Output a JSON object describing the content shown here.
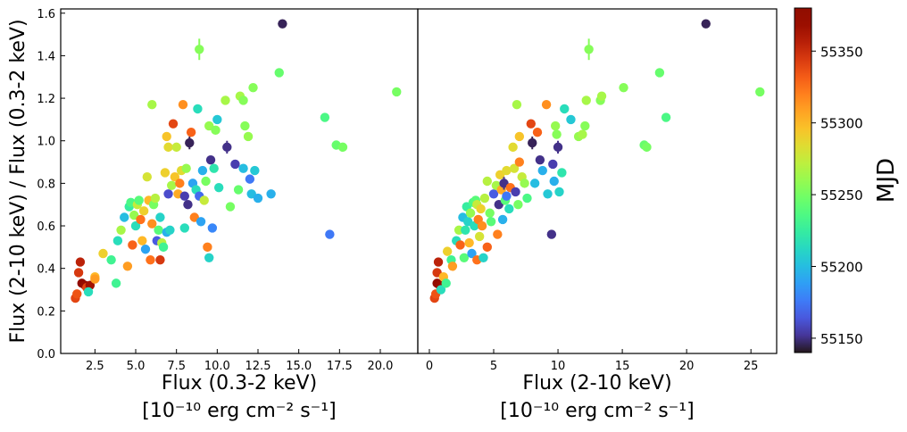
{
  "chart_data": [
    {
      "type": "scatter",
      "xlabel": "Flux (0.3-2 keV)",
      "xunit": "[10⁻¹⁰ erg cm⁻² s⁻¹]",
      "ylabel": "Flux (2-10 keV) / Flux (0.3-2 keV)",
      "xlim": [
        0.4,
        22.3
      ],
      "ylim": [
        0.0,
        1.62
      ],
      "xticks": [
        "2.5",
        "5.0",
        "7.5",
        "10.0",
        "12.5",
        "15.0",
        "17.5",
        "20.0"
      ],
      "yticks": [
        "0.0",
        "0.2",
        "0.4",
        "0.6",
        "0.8",
        "1.0",
        "1.2",
        "1.4",
        "1.6"
      ],
      "grid": false,
      "color_by": "MJD",
      "points": [
        {
          "x": 1.3,
          "y": 0.26,
          "c": 55340
        },
        {
          "x": 1.4,
          "y": 0.28,
          "c": 55335
        },
        {
          "x": 1.5,
          "y": 0.38,
          "c": 55345
        },
        {
          "x": 1.6,
          "y": 0.43,
          "c": 55355
        },
        {
          "x": 1.7,
          "y": 0.33,
          "c": 55375
        },
        {
          "x": 1.9,
          "y": 0.32,
          "c": 55370
        },
        {
          "x": 2.0,
          "y": 0.31,
          "c": 55340
        },
        {
          "x": 2.2,
          "y": 0.32,
          "c": 55365
        },
        {
          "x": 2.1,
          "y": 0.29,
          "c": 55215
        },
        {
          "x": 2.5,
          "y": 0.36,
          "c": 55300
        },
        {
          "x": 2.5,
          "y": 0.35,
          "c": 55310
        },
        {
          "x": 3.0,
          "y": 0.47,
          "c": 55290
        },
        {
          "x": 3.5,
          "y": 0.44,
          "c": 55230
        },
        {
          "x": 3.8,
          "y": 0.33,
          "c": 55230
        },
        {
          "x": 3.9,
          "y": 0.53,
          "c": 55215
        },
        {
          "x": 4.1,
          "y": 0.58,
          "c": 55265
        },
        {
          "x": 4.3,
          "y": 0.64,
          "c": 55200
        },
        {
          "x": 4.5,
          "y": 0.41,
          "c": 55310
        },
        {
          "x": 4.6,
          "y": 0.69,
          "c": 55225
        },
        {
          "x": 4.7,
          "y": 0.71,
          "c": 55235
        },
        {
          "x": 4.8,
          "y": 0.51,
          "c": 55330
        },
        {
          "x": 4.9,
          "y": 0.65,
          "c": 55260
        },
        {
          "x": 5.0,
          "y": 0.6,
          "c": 55215
        },
        {
          "x": 5.1,
          "y": 0.7,
          "c": 55275
        },
        {
          "x": 5.2,
          "y": 0.72,
          "c": 55240
        },
        {
          "x": 5.3,
          "y": 0.63,
          "c": 55325
        },
        {
          "x": 5.4,
          "y": 0.53,
          "c": 55300
        },
        {
          "x": 5.5,
          "y": 0.67,
          "c": 55290
        },
        {
          "x": 5.6,
          "y": 0.49,
          "c": 55190
        },
        {
          "x": 5.7,
          "y": 0.83,
          "c": 55280
        },
        {
          "x": 5.8,
          "y": 0.72,
          "c": 55300
        },
        {
          "x": 5.9,
          "y": 0.44,
          "c": 55325
        },
        {
          "x": 6.0,
          "y": 0.61,
          "c": 55315
        },
        {
          "x": 6.0,
          "y": 1.17,
          "c": 55265
        },
        {
          "x": 6.1,
          "y": 0.7,
          "c": 55250
        },
        {
          "x": 6.2,
          "y": 0.73,
          "c": 55270
        },
        {
          "x": 6.3,
          "y": 0.53,
          "c": 55165
        },
        {
          "x": 6.4,
          "y": 0.58,
          "c": 55240
        },
        {
          "x": 6.5,
          "y": 0.44,
          "c": 55345
        },
        {
          "x": 6.5,
          "y": 0.64,
          "c": 55210
        },
        {
          "x": 6.6,
          "y": 0.52,
          "c": 55270
        },
        {
          "x": 6.7,
          "y": 0.5,
          "c": 55230
        },
        {
          "x": 6.8,
          "y": 0.85,
          "c": 55290
        },
        {
          "x": 6.9,
          "y": 1.02,
          "c": 55295
        },
        {
          "x": 6.9,
          "y": 0.57,
          "c": 55195
        },
        {
          "x": 7.0,
          "y": 0.75,
          "c": 55160
        },
        {
          "x": 7.0,
          "y": 0.97,
          "c": 55285
        },
        {
          "x": 7.1,
          "y": 0.58,
          "c": 55210
        },
        {
          "x": 7.2,
          "y": 0.79,
          "c": 55265
        },
        {
          "x": 7.3,
          "y": 1.08,
          "c": 55340
        },
        {
          "x": 7.4,
          "y": 0.83,
          "c": 55295
        },
        {
          "x": 7.5,
          "y": 0.97,
          "c": 55275
        },
        {
          "x": 7.6,
          "y": 0.75,
          "c": 55305
        },
        {
          "x": 7.7,
          "y": 0.8,
          "c": 55320
        },
        {
          "x": 7.8,
          "y": 0.86,
          "c": 55285
        },
        {
          "x": 7.9,
          "y": 1.17,
          "c": 55315
        },
        {
          "x": 8.0,
          "y": 0.74,
          "c": 55155
        },
        {
          "x": 8.0,
          "y": 0.59,
          "c": 55215
        },
        {
          "x": 8.1,
          "y": 0.87,
          "c": 55260
        },
        {
          "x": 8.2,
          "y": 0.7,
          "c": 55150
        },
        {
          "x": 8.3,
          "y": 0.99,
          "c": 55145,
          "err": 0.03
        },
        {
          "x": 8.4,
          "y": 1.04,
          "c": 55330
        },
        {
          "x": 8.5,
          "y": 0.8,
          "c": 55190
        },
        {
          "x": 8.6,
          "y": 0.64,
          "c": 55320
        },
        {
          "x": 8.7,
          "y": 0.77,
          "c": 55215
        },
        {
          "x": 8.8,
          "y": 1.15,
          "c": 55215
        },
        {
          "x": 8.9,
          "y": 1.43,
          "c": 55255,
          "err": 0.05
        },
        {
          "x": 8.9,
          "y": 0.74,
          "c": 55170
        },
        {
          "x": 9.0,
          "y": 0.62,
          "c": 55190
        },
        {
          "x": 9.1,
          "y": 0.86,
          "c": 55195
        },
        {
          "x": 9.2,
          "y": 0.72,
          "c": 55275
        },
        {
          "x": 9.3,
          "y": 0.81,
          "c": 55250
        },
        {
          "x": 9.4,
          "y": 0.5,
          "c": 55320
        },
        {
          "x": 9.5,
          "y": 0.45,
          "c": 55210
        },
        {
          "x": 9.5,
          "y": 1.07,
          "c": 55260
        },
        {
          "x": 9.6,
          "y": 0.91,
          "c": 55150
        },
        {
          "x": 9.7,
          "y": 0.59,
          "c": 55180
        },
        {
          "x": 9.8,
          "y": 0.87,
          "c": 55220
        },
        {
          "x": 9.9,
          "y": 1.05,
          "c": 55255
        },
        {
          "x": 10.0,
          "y": 1.1,
          "c": 55205
        },
        {
          "x": 10.1,
          "y": 0.78,
          "c": 55215
        },
        {
          "x": 10.5,
          "y": 1.19,
          "c": 55265
        },
        {
          "x": 10.6,
          "y": 0.97,
          "c": 55150,
          "err": 0.03
        },
        {
          "x": 10.8,
          "y": 0.69,
          "c": 55250
        },
        {
          "x": 11.1,
          "y": 0.89,
          "c": 55155
        },
        {
          "x": 11.3,
          "y": 0.77,
          "c": 55245
        },
        {
          "x": 11.4,
          "y": 1.21,
          "c": 55265
        },
        {
          "x": 11.6,
          "y": 0.87,
          "c": 55200
        },
        {
          "x": 11.6,
          "y": 1.19,
          "c": 55255
        },
        {
          "x": 11.7,
          "y": 1.07,
          "c": 55255
        },
        {
          "x": 11.9,
          "y": 1.02,
          "c": 55260
        },
        {
          "x": 12.0,
          "y": 0.82,
          "c": 55175
        },
        {
          "x": 12.1,
          "y": 0.75,
          "c": 55200
        },
        {
          "x": 12.2,
          "y": 1.25,
          "c": 55255
        },
        {
          "x": 12.3,
          "y": 0.86,
          "c": 55205
        },
        {
          "x": 12.5,
          "y": 0.73,
          "c": 55195
        },
        {
          "x": 13.3,
          "y": 0.75,
          "c": 55195
        },
        {
          "x": 13.8,
          "y": 1.32,
          "c": 55245
        },
        {
          "x": 14.0,
          "y": 1.55,
          "c": 55145
        },
        {
          "x": 16.6,
          "y": 1.11,
          "c": 55235
        },
        {
          "x": 16.9,
          "y": 0.56,
          "c": 55175
        },
        {
          "x": 17.3,
          "y": 0.98,
          "c": 55245
        },
        {
          "x": 17.7,
          "y": 0.97,
          "c": 55250
        },
        {
          "x": 21.0,
          "y": 1.23,
          "c": 55250
        }
      ]
    },
    {
      "type": "scatter",
      "xlabel": "Flux (2-10 keV)",
      "xunit": "[10⁻¹⁰ erg cm⁻² s⁻¹]",
      "ylabel": "",
      "xlim": [
        -0.9,
        27.0
      ],
      "ylim": [
        0.0,
        1.62
      ],
      "xticks": [
        "0",
        "5",
        "10",
        "15",
        "20",
        "25"
      ],
      "yticks": [],
      "grid": false,
      "color_by": "MJD",
      "points": [
        {
          "x": 0.4,
          "y": 0.26,
          "c": 55340
        },
        {
          "x": 0.5,
          "y": 0.28,
          "c": 55335
        },
        {
          "x": 0.6,
          "y": 0.38,
          "c": 55345
        },
        {
          "x": 0.7,
          "y": 0.43,
          "c": 55355
        },
        {
          "x": 0.6,
          "y": 0.33,
          "c": 55375
        },
        {
          "x": 0.8,
          "y": 0.32,
          "c": 55370
        },
        {
          "x": 0.9,
          "y": 0.3,
          "c": 55215
        },
        {
          "x": 1.1,
          "y": 0.36,
          "c": 55300
        },
        {
          "x": 1.3,
          "y": 0.33,
          "c": 55230
        },
        {
          "x": 1.4,
          "y": 0.48,
          "c": 55290
        },
        {
          "x": 1.7,
          "y": 0.44,
          "c": 55230
        },
        {
          "x": 1.8,
          "y": 0.41,
          "c": 55310
        },
        {
          "x": 2.1,
          "y": 0.53,
          "c": 55215
        },
        {
          "x": 2.3,
          "y": 0.58,
          "c": 55265
        },
        {
          "x": 2.4,
          "y": 0.51,
          "c": 55330
        },
        {
          "x": 2.6,
          "y": 0.64,
          "c": 55200
        },
        {
          "x": 2.7,
          "y": 0.45,
          "c": 55240
        },
        {
          "x": 2.8,
          "y": 0.58,
          "c": 55220
        },
        {
          "x": 2.9,
          "y": 0.69,
          "c": 55225
        },
        {
          "x": 3.0,
          "y": 0.62,
          "c": 55210
        },
        {
          "x": 3.1,
          "y": 0.52,
          "c": 55300
        },
        {
          "x": 3.2,
          "y": 0.66,
          "c": 55260
        },
        {
          "x": 3.3,
          "y": 0.47,
          "c": 55190
        },
        {
          "x": 3.4,
          "y": 0.71,
          "c": 55235
        },
        {
          "x": 3.5,
          "y": 0.6,
          "c": 55215
        },
        {
          "x": 3.6,
          "y": 0.72,
          "c": 55240
        },
        {
          "x": 3.7,
          "y": 0.44,
          "c": 55325
        },
        {
          "x": 3.7,
          "y": 0.7,
          "c": 55275
        },
        {
          "x": 3.8,
          "y": 0.63,
          "c": 55320
        },
        {
          "x": 3.9,
          "y": 0.55,
          "c": 55280
        },
        {
          "x": 4.0,
          "y": 0.68,
          "c": 55290
        },
        {
          "x": 4.1,
          "y": 0.6,
          "c": 55315
        },
        {
          "x": 4.2,
          "y": 0.45,
          "c": 55210
        },
        {
          "x": 4.3,
          "y": 0.73,
          "c": 55270
        },
        {
          "x": 4.5,
          "y": 0.81,
          "c": 55270
        },
        {
          "x": 4.5,
          "y": 0.5,
          "c": 55330
        },
        {
          "x": 4.7,
          "y": 0.66,
          "c": 55250
        },
        {
          "x": 4.8,
          "y": 0.62,
          "c": 55240
        },
        {
          "x": 5.0,
          "y": 0.75,
          "c": 55165
        },
        {
          "x": 5.2,
          "y": 0.79,
          "c": 55265
        },
        {
          "x": 5.3,
          "y": 0.56,
          "c": 55320
        },
        {
          "x": 5.4,
          "y": 0.7,
          "c": 55150
        },
        {
          "x": 5.5,
          "y": 0.84,
          "c": 55290
        },
        {
          "x": 5.6,
          "y": 0.77,
          "c": 55305
        },
        {
          "x": 5.7,
          "y": 0.63,
          "c": 55195
        },
        {
          "x": 5.8,
          "y": 0.8,
          "c": 55150,
          "err": 0.03
        },
        {
          "x": 5.9,
          "y": 0.72,
          "c": 55240
        },
        {
          "x": 6.0,
          "y": 0.86,
          "c": 55285
        },
        {
          "x": 6.0,
          "y": 0.74,
          "c": 55175
        },
        {
          "x": 6.2,
          "y": 0.68,
          "c": 55215
        },
        {
          "x": 6.3,
          "y": 0.78,
          "c": 55325
        },
        {
          "x": 6.5,
          "y": 0.97,
          "c": 55285
        },
        {
          "x": 6.6,
          "y": 0.87,
          "c": 55280
        },
        {
          "x": 6.7,
          "y": 0.76,
          "c": 55155
        },
        {
          "x": 6.8,
          "y": 1.17,
          "c": 55265
        },
        {
          "x": 6.9,
          "y": 0.7,
          "c": 55250
        },
        {
          "x": 7.0,
          "y": 1.02,
          "c": 55295
        },
        {
          "x": 7.0,
          "y": 0.9,
          "c": 55320
        },
        {
          "x": 7.2,
          "y": 0.83,
          "c": 55275
        },
        {
          "x": 7.4,
          "y": 0.8,
          "c": 55260
        },
        {
          "x": 7.6,
          "y": 0.73,
          "c": 55235
        },
        {
          "x": 7.9,
          "y": 1.08,
          "c": 55340
        },
        {
          "x": 8.0,
          "y": 0.99,
          "c": 55145,
          "err": 0.03
        },
        {
          "x": 8.2,
          "y": 0.8,
          "c": 55200
        },
        {
          "x": 8.4,
          "y": 1.04,
          "c": 55330
        },
        {
          "x": 8.6,
          "y": 0.91,
          "c": 55150
        },
        {
          "x": 8.8,
          "y": 0.86,
          "c": 55195
        },
        {
          "x": 9.1,
          "y": 1.17,
          "c": 55315
        },
        {
          "x": 9.2,
          "y": 0.75,
          "c": 55205
        },
        {
          "x": 9.5,
          "y": 0.56,
          "c": 55150
        },
        {
          "x": 9.6,
          "y": 0.89,
          "c": 55155
        },
        {
          "x": 9.7,
          "y": 0.81,
          "c": 55195
        },
        {
          "x": 9.8,
          "y": 1.07,
          "c": 55260
        },
        {
          "x": 9.9,
          "y": 1.03,
          "c": 55255
        },
        {
          "x": 10.0,
          "y": 0.97,
          "c": 55150,
          "err": 0.03
        },
        {
          "x": 10.1,
          "y": 0.76,
          "c": 55210
        },
        {
          "x": 10.3,
          "y": 0.85,
          "c": 55220
        },
        {
          "x": 10.5,
          "y": 1.15,
          "c": 55215
        },
        {
          "x": 11.0,
          "y": 1.1,
          "c": 55205
        },
        {
          "x": 11.6,
          "y": 1.02,
          "c": 55260
        },
        {
          "x": 11.9,
          "y": 1.03,
          "c": 55265
        },
        {
          "x": 12.1,
          "y": 1.07,
          "c": 55255
        },
        {
          "x": 12.2,
          "y": 1.19,
          "c": 55265
        },
        {
          "x": 12.4,
          "y": 1.43,
          "c": 55255,
          "err": 0.05
        },
        {
          "x": 13.3,
          "y": 1.19,
          "c": 55255
        },
        {
          "x": 13.4,
          "y": 1.21,
          "c": 55265
        },
        {
          "x": 15.1,
          "y": 1.25,
          "c": 55255
        },
        {
          "x": 16.7,
          "y": 0.98,
          "c": 55245
        },
        {
          "x": 16.9,
          "y": 0.97,
          "c": 55250
        },
        {
          "x": 17.9,
          "y": 1.32,
          "c": 55245
        },
        {
          "x": 18.4,
          "y": 1.11,
          "c": 55235
        },
        {
          "x": 21.5,
          "y": 1.55,
          "c": 55145
        },
        {
          "x": 25.7,
          "y": 1.23,
          "c": 55250
        }
      ]
    }
  ],
  "colorbar": {
    "label": "MJD",
    "colormap": "turbo",
    "range": [
      55140,
      55380
    ],
    "ticks": [
      "55150",
      "55200",
      "55250",
      "55300",
      "55350"
    ]
  }
}
